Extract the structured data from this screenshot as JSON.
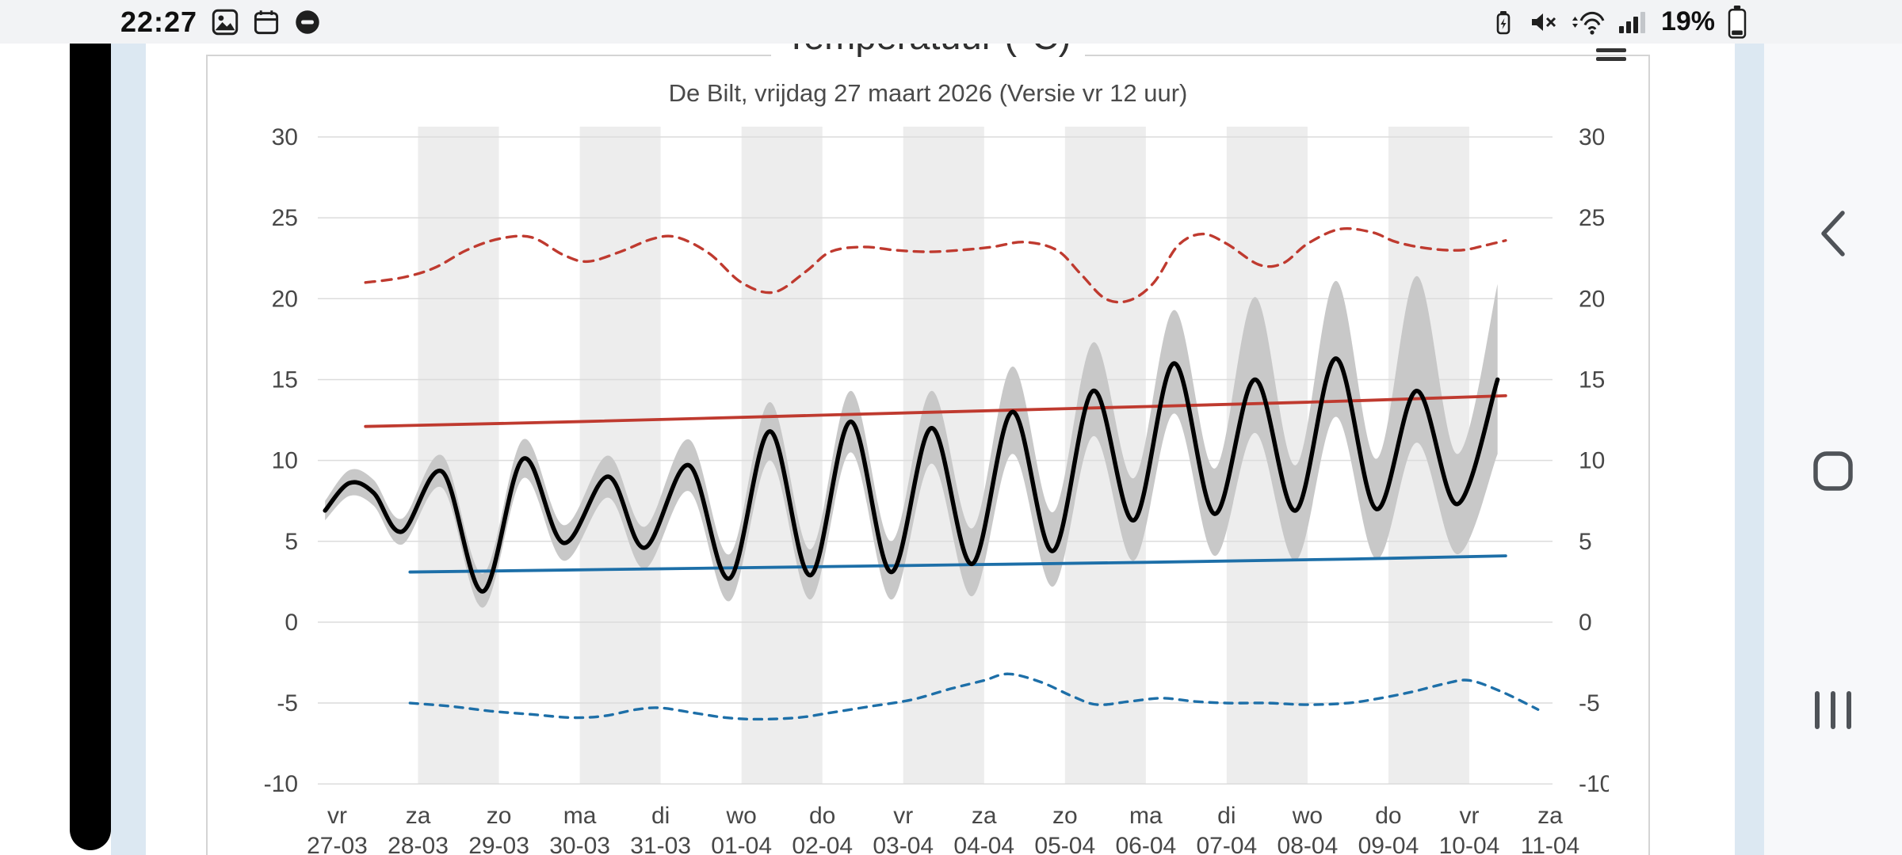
{
  "status_bar": {
    "time": "22:27",
    "battery_text": "19%",
    "notification_icons": [
      {
        "name": "gallery-icon"
      },
      {
        "name": "calendar-icon"
      },
      {
        "name": "do-not-disturb-icon"
      }
    ],
    "system_icons": [
      {
        "name": "battery-charging-icon"
      },
      {
        "name": "mute-icon"
      },
      {
        "name": "wifi-icon"
      },
      {
        "name": "signal-strength-icon"
      },
      {
        "name": "battery-icon"
      }
    ]
  },
  "chart": {
    "title": "Temperatuur (°C)",
    "subtitle": "De Bilt, vrijdag 27 maart 2026 (Versie vr 12 uur)",
    "menu_icon": "hamburger-menu-icon"
  },
  "nav_bar": {
    "back": "back-icon",
    "home": "home-icon",
    "recents": "recents-icon"
  },
  "colors": {
    "red": "#bf3a2f",
    "blue": "#1d6fa8",
    "black": "#000000",
    "band": "#c8c8c8",
    "stripe": "#ededed",
    "grid": "#dcdcdc",
    "axis_text": "#474747",
    "page_bg": "#dce8f2",
    "statusbar_bg": "#f2f3f5"
  },
  "chart_data": {
    "type": "line",
    "title": "Temperatuur (°C)",
    "subtitle": "De Bilt, vrijdag 27 maart 2026 (Versie vr 12 uur)",
    "ylim": [
      -10,
      30
    ],
    "yticks": [
      30,
      25,
      20,
      15,
      10,
      5,
      0,
      -5,
      -10
    ],
    "grid": true,
    "x_categories": [
      {
        "day": "vr",
        "date": "27-03"
      },
      {
        "day": "za",
        "date": "28-03"
      },
      {
        "day": "zo",
        "date": "29-03"
      },
      {
        "day": "ma",
        "date": "30-03"
      },
      {
        "day": "di",
        "date": "31-03"
      },
      {
        "day": "wo",
        "date": "01-04"
      },
      {
        "day": "do",
        "date": "02-04"
      },
      {
        "day": "vr",
        "date": "03-04"
      },
      {
        "day": "za",
        "date": "04-04"
      },
      {
        "day": "zo",
        "date": "05-04"
      },
      {
        "day": "ma",
        "date": "06-04"
      },
      {
        "day": "di",
        "date": "07-04"
      },
      {
        "day": "wo",
        "date": "08-04"
      },
      {
        "day": "do",
        "date": "09-04"
      },
      {
        "day": "vr",
        "date": "10-04"
      },
      {
        "day": "za",
        "date": "11-04"
      }
    ],
    "band": {
      "name": "ensemble-spread-band",
      "color": "#c8c8c8",
      "points": [
        [
          -0.15,
          6.3,
          7.5
        ],
        [
          0.15,
          7.8,
          9.4
        ],
        [
          0.45,
          7.2,
          8.8
        ],
        [
          0.8,
          4.8,
          6.4
        ],
        [
          1.3,
          8.3,
          10.3
        ],
        [
          1.8,
          0.9,
          3.0
        ],
        [
          2.3,
          8.9,
          11.3
        ],
        [
          2.8,
          3.8,
          6.0
        ],
        [
          3.35,
          7.7,
          10.3
        ],
        [
          3.8,
          3.3,
          5.9
        ],
        [
          4.35,
          8.1,
          11.3
        ],
        [
          4.85,
          1.3,
          4.2
        ],
        [
          5.35,
          10.0,
          13.6
        ],
        [
          5.85,
          1.4,
          4.5
        ],
        [
          6.35,
          10.5,
          14.3
        ],
        [
          6.85,
          1.4,
          5.0
        ],
        [
          7.35,
          9.8,
          14.3
        ],
        [
          7.85,
          1.6,
          5.8
        ],
        [
          8.35,
          10.4,
          15.8
        ],
        [
          8.85,
          2.2,
          6.8
        ],
        [
          9.35,
          11.5,
          17.3
        ],
        [
          9.85,
          3.8,
          8.9
        ],
        [
          10.35,
          12.9,
          19.3
        ],
        [
          10.85,
          4.1,
          9.5
        ],
        [
          11.35,
          11.7,
          20.1
        ],
        [
          11.85,
          3.8,
          9.7
        ],
        [
          12.35,
          12.7,
          21.1
        ],
        [
          12.85,
          3.9,
          10.1
        ],
        [
          13.35,
          11.1,
          21.4
        ],
        [
          13.85,
          4.2,
          10.4
        ],
        [
          14.35,
          10.4,
          20.9
        ]
      ]
    },
    "series": [
      {
        "name": "red-dashed-upper",
        "color": "#bf3a2f",
        "dash": "12 9",
        "width": 3.4,
        "points": [
          [
            0.35,
            21.0
          ],
          [
            0.8,
            21.3
          ],
          [
            1.2,
            21.9
          ],
          [
            1.6,
            23.0
          ],
          [
            2.0,
            23.7
          ],
          [
            2.4,
            23.8
          ],
          [
            2.8,
            22.7
          ],
          [
            3.1,
            22.3
          ],
          [
            3.5,
            22.9
          ],
          [
            3.9,
            23.7
          ],
          [
            4.2,
            23.8
          ],
          [
            4.6,
            22.8
          ],
          [
            5.0,
            21.0
          ],
          [
            5.4,
            20.4
          ],
          [
            5.8,
            21.7
          ],
          [
            6.1,
            22.9
          ],
          [
            6.5,
            23.2
          ],
          [
            6.9,
            23.0
          ],
          [
            7.3,
            22.9
          ],
          [
            7.7,
            23.0
          ],
          [
            8.1,
            23.2
          ],
          [
            8.5,
            23.5
          ],
          [
            8.9,
            23.0
          ],
          [
            9.2,
            21.5
          ],
          [
            9.5,
            20.0
          ],
          [
            9.8,
            19.9
          ],
          [
            10.1,
            21.0
          ],
          [
            10.4,
            23.3
          ],
          [
            10.7,
            24.0
          ],
          [
            11.0,
            23.4
          ],
          [
            11.4,
            22.1
          ],
          [
            11.7,
            22.2
          ],
          [
            12.0,
            23.4
          ],
          [
            12.4,
            24.3
          ],
          [
            12.8,
            24.1
          ],
          [
            13.1,
            23.5
          ],
          [
            13.5,
            23.1
          ],
          [
            13.9,
            23.0
          ],
          [
            14.2,
            23.3
          ],
          [
            14.45,
            23.6
          ]
        ]
      },
      {
        "name": "red-solid-normal-max",
        "color": "#bf3a2f",
        "dash": "none",
        "width": 3.8,
        "points": [
          [
            0.35,
            12.1
          ],
          [
            3,
            12.4
          ],
          [
            6,
            12.8
          ],
          [
            9,
            13.2
          ],
          [
            12,
            13.6
          ],
          [
            14.45,
            14.0
          ]
        ]
      },
      {
        "name": "blue-solid-normal-min",
        "color": "#1d6fa8",
        "dash": "none",
        "width": 3.8,
        "points": [
          [
            0.9,
            3.1
          ],
          [
            4,
            3.3
          ],
          [
            7,
            3.5
          ],
          [
            10,
            3.7
          ],
          [
            12.5,
            3.9
          ],
          [
            14.45,
            4.1
          ]
        ]
      },
      {
        "name": "blue-dashed-lower",
        "color": "#1d6fa8",
        "dash": "10 9",
        "width": 3.4,
        "points": [
          [
            0.9,
            -5.0
          ],
          [
            1.4,
            -5.2
          ],
          [
            1.9,
            -5.5
          ],
          [
            2.4,
            -5.7
          ],
          [
            2.9,
            -5.9
          ],
          [
            3.3,
            -5.8
          ],
          [
            3.7,
            -5.4
          ],
          [
            4.0,
            -5.3
          ],
          [
            4.4,
            -5.6
          ],
          [
            4.8,
            -5.9
          ],
          [
            5.2,
            -6.0
          ],
          [
            5.7,
            -5.9
          ],
          [
            6.1,
            -5.6
          ],
          [
            6.6,
            -5.2
          ],
          [
            7.1,
            -4.8
          ],
          [
            7.6,
            -4.1
          ],
          [
            8.0,
            -3.6
          ],
          [
            8.3,
            -3.2
          ],
          [
            8.7,
            -3.7
          ],
          [
            9.1,
            -4.6
          ],
          [
            9.4,
            -5.1
          ],
          [
            9.8,
            -4.9
          ],
          [
            10.2,
            -4.7
          ],
          [
            10.6,
            -4.9
          ],
          [
            11.0,
            -5.0
          ],
          [
            11.5,
            -5.0
          ],
          [
            12.0,
            -5.1
          ],
          [
            12.5,
            -5.0
          ],
          [
            12.9,
            -4.7
          ],
          [
            13.3,
            -4.3
          ],
          [
            13.7,
            -3.8
          ],
          [
            14.0,
            -3.6
          ],
          [
            14.4,
            -4.3
          ],
          [
            14.85,
            -5.4
          ]
        ]
      },
      {
        "name": "ensemble-mean",
        "color": "#000000",
        "dash": "none",
        "width": 5.5,
        "points": [
          [
            -0.15,
            6.9
          ],
          [
            0.15,
            8.6
          ],
          [
            0.45,
            8.0
          ],
          [
            0.8,
            5.6
          ],
          [
            1.3,
            9.3
          ],
          [
            1.8,
            1.9
          ],
          [
            2.3,
            10.1
          ],
          [
            2.8,
            4.9
          ],
          [
            3.35,
            9.0
          ],
          [
            3.8,
            4.6
          ],
          [
            4.35,
            9.7
          ],
          [
            4.85,
            2.7
          ],
          [
            5.35,
            11.8
          ],
          [
            5.85,
            2.9
          ],
          [
            6.35,
            12.4
          ],
          [
            6.85,
            3.1
          ],
          [
            7.35,
            12.0
          ],
          [
            7.85,
            3.6
          ],
          [
            8.35,
            13.0
          ],
          [
            8.85,
            4.4
          ],
          [
            9.35,
            14.3
          ],
          [
            9.85,
            6.3
          ],
          [
            10.35,
            16.0
          ],
          [
            10.85,
            6.7
          ],
          [
            11.35,
            15.0
          ],
          [
            11.85,
            6.9
          ],
          [
            12.35,
            16.3
          ],
          [
            12.85,
            7.0
          ],
          [
            13.35,
            14.3
          ],
          [
            13.85,
            7.3
          ],
          [
            14.35,
            15.0
          ]
        ]
      }
    ]
  }
}
